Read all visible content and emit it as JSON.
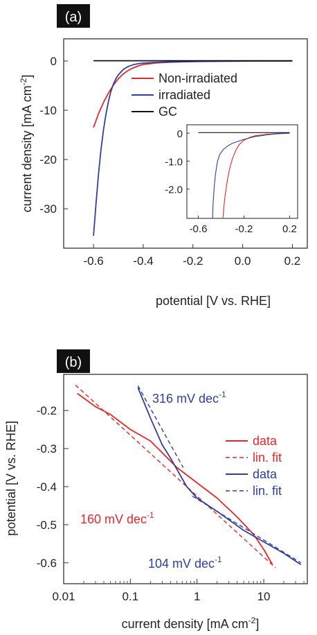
{
  "colors": {
    "red": "#e8262a",
    "blue": "#2f3f9e",
    "black": "#111111"
  },
  "chart_data": [
    {
      "panel": "(a)",
      "type": "line",
      "xlabel": "potential [V vs. RHE]",
      "ylabel": "current density [mA cm",
      "ylabel_sup": "-2",
      "ylabel_close": "]",
      "xlim": [
        -0.72,
        0.26
      ],
      "ylim": [
        -38,
        4.5
      ],
      "xticks": [
        {
          "v": -0.6,
          "label": "-0.6"
        },
        {
          "v": -0.4,
          "label": "-0.4"
        },
        {
          "v": -0.2,
          "label": "-0.2"
        },
        {
          "v": 0.0,
          "label": "0.0"
        },
        {
          "v": 0.2,
          "label": "0.2"
        }
      ],
      "yticks": [
        {
          "v": 0,
          "label": "0"
        },
        {
          "v": -10,
          "label": "-10"
        },
        {
          "v": -20,
          "label": "-20"
        },
        {
          "v": -30,
          "label": "-30"
        }
      ],
      "legend": [
        {
          "label": "Non-irradiated",
          "color": "#e8262a"
        },
        {
          "label": "irradiated",
          "color": "#2f3f9e"
        },
        {
          "label": "GC",
          "color": "#111111"
        }
      ],
      "series": [
        {
          "color": "#e8262a",
          "x": [
            -0.6,
            -0.58,
            -0.56,
            -0.54,
            -0.52,
            -0.5,
            -0.48,
            -0.46,
            -0.44,
            -0.42,
            -0.4,
            -0.35,
            -0.3,
            -0.2,
            -0.1,
            0.0,
            0.1,
            0.2
          ],
          "y": [
            -13.5,
            -10.7,
            -8.4,
            -6.5,
            -4.9,
            -3.6,
            -2.6,
            -1.9,
            -1.4,
            -1.0,
            -0.7,
            -0.4,
            -0.25,
            -0.12,
            -0.06,
            -0.03,
            -0.01,
            0.0
          ]
        },
        {
          "color": "#2f3f9e",
          "x": [
            -0.6,
            -0.59,
            -0.58,
            -0.57,
            -0.56,
            -0.55,
            -0.54,
            -0.53,
            -0.52,
            -0.51,
            -0.5,
            -0.48,
            -0.46,
            -0.44,
            -0.42,
            -0.4,
            -0.35,
            -0.3,
            -0.2,
            -0.1,
            0.0,
            0.1,
            0.2
          ],
          "y": [
            -35.5,
            -29.0,
            -23.0,
            -18.0,
            -14.0,
            -10.8,
            -8.2,
            -6.2,
            -4.7,
            -3.6,
            -2.8,
            -1.7,
            -1.1,
            -0.75,
            -0.55,
            -0.42,
            -0.28,
            -0.2,
            -0.1,
            -0.05,
            -0.02,
            -0.01,
            0.0
          ]
        },
        {
          "color": "#111111",
          "x": [
            -0.6,
            0.2
          ],
          "y": [
            0.05,
            0.05
          ]
        }
      ],
      "inset": {
        "xlim": [
          -0.7,
          0.27
        ],
        "ylim": [
          -3.05,
          0.3
        ],
        "xticks": [
          {
            "v": -0.6,
            "label": "-0.6"
          },
          {
            "v": -0.2,
            "label": "-0.2"
          },
          {
            "v": 0.2,
            "label": "0.2"
          }
        ],
        "yticks": [
          {
            "v": 0,
            "label": "0"
          },
          {
            "v": -1.0,
            "label": "-1.0"
          },
          {
            "v": -2.0,
            "label": "-2.0"
          }
        ],
        "series": [
          {
            "color": "#e8262a",
            "x": [
              -0.385,
              -0.37,
              -0.35,
              -0.33,
              -0.3,
              -0.27,
              -0.24,
              -0.2,
              -0.15,
              -0.1,
              0.0,
              0.1,
              0.2
            ],
            "y": [
              -3.05,
              -2.4,
              -1.8,
              -1.35,
              -0.9,
              -0.6,
              -0.4,
              -0.25,
              -0.15,
              -0.09,
              -0.04,
              -0.01,
              0.0
            ]
          },
          {
            "color": "#2f3f9e",
            "x": [
              -0.475,
              -0.47,
              -0.46,
              -0.45,
              -0.44,
              -0.43,
              -0.41,
              -0.38,
              -0.34,
              -0.3,
              -0.2,
              -0.1,
              0.0,
              0.1,
              0.2
            ],
            "y": [
              -3.05,
              -2.5,
              -1.9,
              -1.5,
              -1.2,
              -0.98,
              -0.75,
              -0.58,
              -0.45,
              -0.36,
              -0.22,
              -0.12,
              -0.06,
              -0.02,
              0.0
            ]
          },
          {
            "color": "#111111",
            "x": [
              -0.6,
              0.2
            ],
            "y": [
              0.02,
              0.02
            ]
          }
        ]
      }
    },
    {
      "panel": "(b)",
      "type": "line",
      "xscale": "log",
      "xlabel": "current density [mA cm",
      "xlabel_sup": "-2",
      "xlabel_close": "]",
      "ylabel": "potential [V vs. RHE]",
      "xlim": [
        0.01,
        45
      ],
      "ylim": [
        -0.655,
        -0.105
      ],
      "xticks": [
        {
          "v": 0.01,
          "label": "0.01"
        },
        {
          "v": 0.1,
          "label": "0.1"
        },
        {
          "v": 1,
          "label": "1"
        },
        {
          "v": 10,
          "label": "10"
        }
      ],
      "yticks": [
        {
          "v": -0.2,
          "label": "-0.2"
        },
        {
          "v": -0.3,
          "label": "-0.3"
        },
        {
          "v": -0.4,
          "label": "-0.4"
        },
        {
          "v": -0.5,
          "label": "-0.5"
        },
        {
          "v": -0.6,
          "label": "-0.6"
        }
      ],
      "legend": [
        {
          "label": "data",
          "color": "#e8262a",
          "dash": false
        },
        {
          "label": "lin. fit",
          "color": "#e8262a",
          "dash": true
        },
        {
          "label": "data",
          "color": "#2f3f9e",
          "dash": false
        },
        {
          "label": "lin. fit",
          "color": "#2f3f9e",
          "dash": true
        }
      ],
      "annotations": [
        {
          "text": "316 mV dec",
          "sup": "-1",
          "color": "#2f3f9e"
        },
        {
          "text": "160 mV dec",
          "sup": "-1",
          "color": "#e8262a"
        },
        {
          "text": "104 mV dec",
          "sup": "-1",
          "color": "#2f3f9e"
        }
      ],
      "series": [
        {
          "name": "data",
          "color": "#e8262a",
          "dash": false,
          "x": [
            0.016,
            0.03,
            0.05,
            0.1,
            0.2,
            0.5,
            1,
            2,
            4,
            7,
            10,
            13.5
          ],
          "y": [
            -0.155,
            -0.19,
            -0.21,
            -0.25,
            -0.28,
            -0.35,
            -0.39,
            -0.43,
            -0.48,
            -0.525,
            -0.565,
            -0.605
          ]
        },
        {
          "name": "lin. fit",
          "color": "#e8262a",
          "dash": true,
          "x": [
            0.015,
            15
          ],
          "y": [
            -0.133,
            -0.613
          ]
        },
        {
          "name": "data",
          "color": "#2f3f9e",
          "dash": false,
          "x": [
            0.13,
            0.2,
            0.3,
            0.4,
            0.5,
            0.7,
            1,
            2,
            5,
            10,
            20,
            36
          ],
          "y": [
            -0.14,
            -0.22,
            -0.29,
            -0.325,
            -0.355,
            -0.4,
            -0.43,
            -0.465,
            -0.515,
            -0.545,
            -0.575,
            -0.605
          ]
        },
        {
          "name": "lin. fit",
          "color": "#2f3f9e",
          "dash": true,
          "x": [
            0.13,
            0.62
          ],
          "y": [
            -0.135,
            -0.35
          ]
        },
        {
          "name": "lin. fit",
          "color": "#2f3f9e",
          "dash": true,
          "x": [
            0.85,
            36
          ],
          "y": [
            -0.425,
            -0.6
          ]
        }
      ]
    }
  ]
}
